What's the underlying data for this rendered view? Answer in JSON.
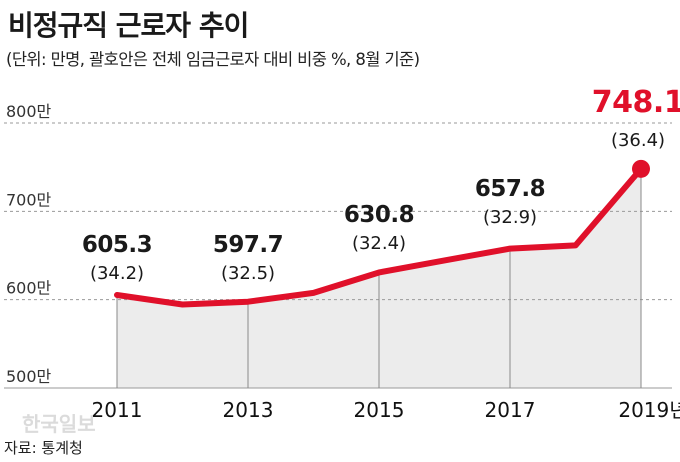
{
  "title": "비정규직 근로자 추이",
  "subtitle": "(단위: 만명, 괄호안은 전체 임금근로자 대비 비중 %, 8월 기준)",
  "source": "자료: 통계청",
  "watermark": "한국일보",
  "colors": {
    "line": "#e0102a",
    "highlight": "#e0102a",
    "text": "#1a1a1a",
    "area": "#ececec",
    "grid": "#9a9a9a"
  },
  "chart_data": {
    "type": "line",
    "title": "비정규직 근로자 추이",
    "subtitle": "(단위: 만명, 괄호안은 전체 임금근로자 대비 비중 %, 8월 기준)",
    "xlabel": "",
    "ylabel": "",
    "ylim": [
      500,
      800
    ],
    "y_ticks": [
      {
        "value": 800,
        "label": "800만"
      },
      {
        "value": 700,
        "label": "700만"
      },
      {
        "value": 600,
        "label": "600만"
      },
      {
        "value": 500,
        "label": "500만"
      }
    ],
    "x": [
      2011,
      2012,
      2013,
      2014,
      2015,
      2016,
      2017,
      2018,
      2019
    ],
    "x_tick_labels": [
      "2011",
      "",
      "2013",
      "",
      "2015",
      "",
      "2017",
      "",
      "2019년"
    ],
    "series": [
      {
        "values": [
          605.3,
          594.5,
          597.7,
          607.7,
          630.8,
          644.4,
          657.8,
          661.4,
          748.1
        ]
      }
    ],
    "annotations": [
      {
        "x": 2011,
        "value": "605.3",
        "share": "(34.2)"
      },
      {
        "x": 2013,
        "value": "597.7",
        "share": "(32.5)"
      },
      {
        "x": 2015,
        "value": "630.8",
        "share": "(32.4)"
      },
      {
        "x": 2017,
        "value": "657.8",
        "share": "(32.9)"
      },
      {
        "x": 2019,
        "value": "748.1",
        "share": "(36.4)",
        "highlight": true
      }
    ],
    "grid": true,
    "legend": "none"
  }
}
